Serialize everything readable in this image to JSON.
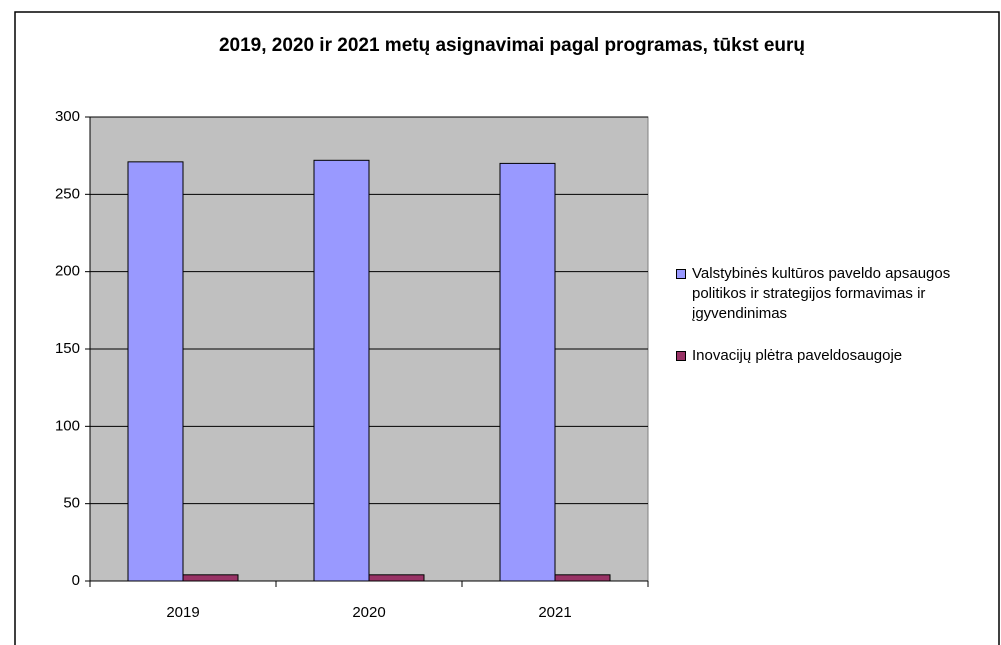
{
  "chart_data": {
    "type": "bar",
    "title": "2019, 2020 ir 2021 metų asignavimai pagal programas, tūkst eurų",
    "categories": [
      "2019",
      "2020",
      "2021"
    ],
    "series": [
      {
        "name": "Valstybinės kultūros paveldo apsaugos politikos ir strategijos formavimas ir įgyvendinimas",
        "color": "#9999ff",
        "values": [
          271,
          272,
          270
        ]
      },
      {
        "name": "Inovacijų plėtra paveldosaugoje",
        "color": "#993366",
        "values": [
          4,
          4,
          4
        ]
      }
    ],
    "ylim": [
      0,
      300
    ],
    "yticks": [
      0,
      50,
      100,
      150,
      200,
      250,
      300
    ],
    "grid": true,
    "legend": "right"
  }
}
